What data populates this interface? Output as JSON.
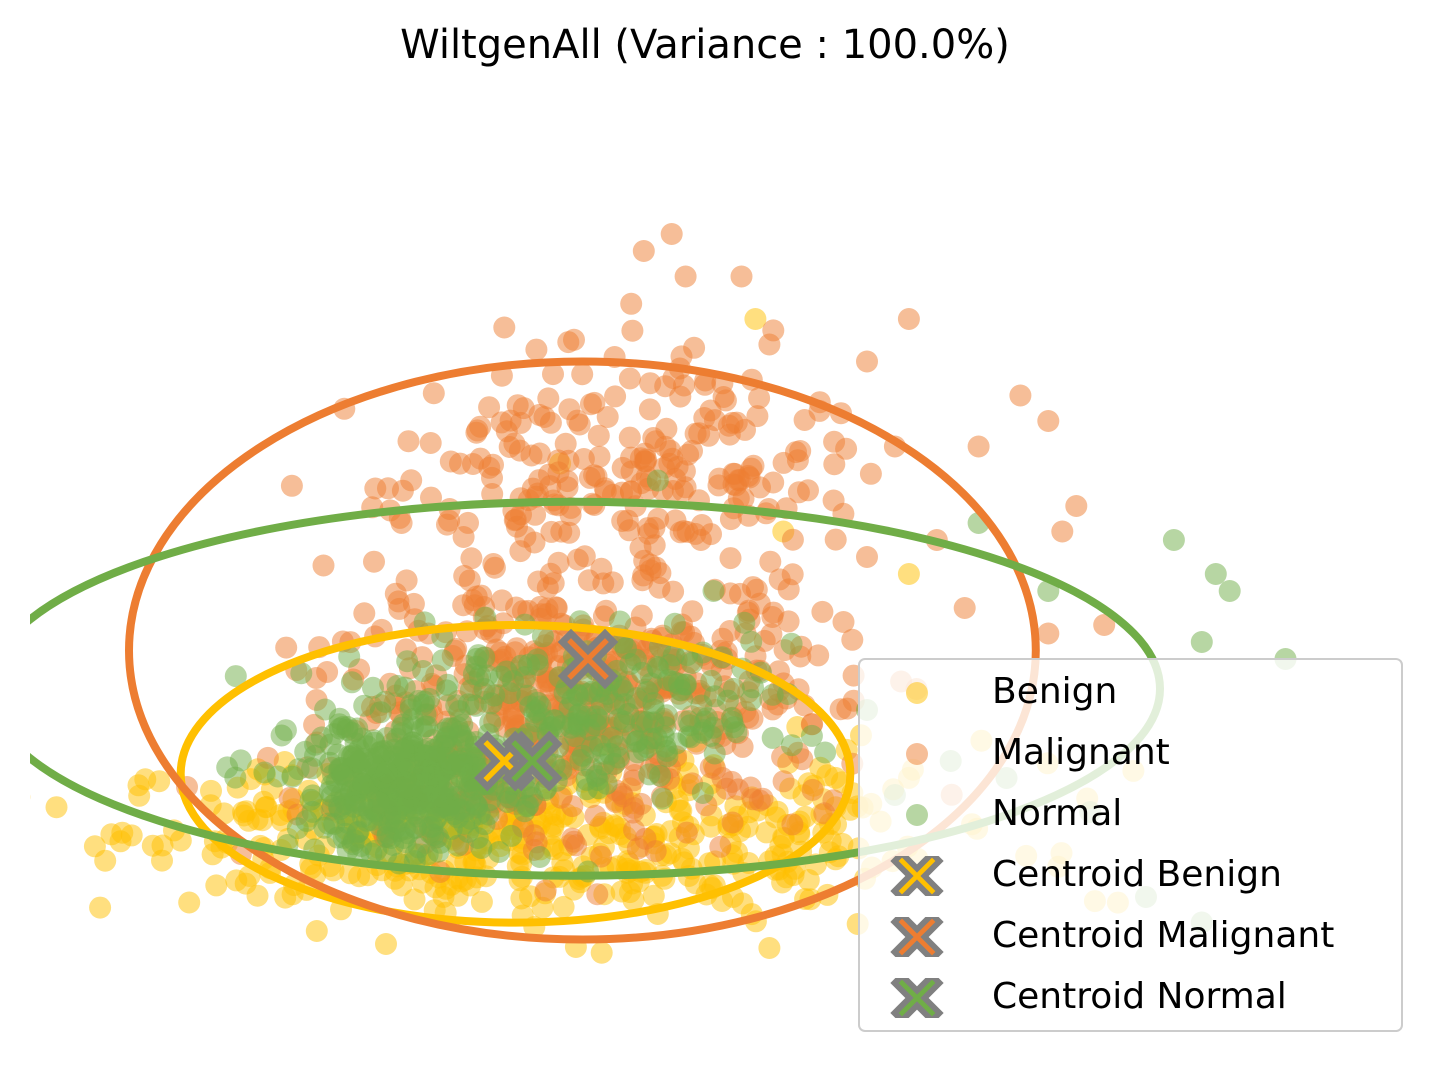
{
  "chart_data": {
    "type": "scatter",
    "title": "WiltgenAll (Variance : 100.0%)",
    "axes_visible": false,
    "grid": false,
    "legend_placement": "lower-right",
    "xlim": [
      0,
      100
    ],
    "ylim": [
      0,
      100
    ],
    "series": [
      {
        "name": "Benign",
        "color": "#FFC000",
        "marker": "circle",
        "alpha": 0.5,
        "clusters": [
          {
            "cx": 30,
            "cy": 24,
            "sx": 12,
            "sy": 4,
            "n": 260
          },
          {
            "cx": 40,
            "cy": 20,
            "sx": 14,
            "sy": 4,
            "n": 140
          },
          {
            "cx": 50,
            "cy": 26,
            "sx": 10,
            "sy": 5,
            "n": 70
          }
        ],
        "extra_points": [
          [
            63,
            54
          ],
          [
            54,
            59
          ],
          [
            38,
            67
          ],
          [
            52,
            84
          ],
          [
            45,
            14
          ],
          [
            53,
            10
          ],
          [
            55,
            36
          ]
        ]
      },
      {
        "name": "Malignant",
        "color": "#ED7D31",
        "marker": "circle",
        "alpha": 0.5,
        "clusters": [
          {
            "cx": 40,
            "cy": 40,
            "sx": 9,
            "sy": 7,
            "n": 520
          },
          {
            "cx": 35,
            "cy": 64,
            "sx": 6,
            "sy": 6,
            "n": 70
          },
          {
            "cx": 44,
            "cy": 70,
            "sx": 5,
            "sy": 6,
            "n": 90
          },
          {
            "cx": 50,
            "cy": 64,
            "sx": 5,
            "sy": 5,
            "n": 70
          },
          {
            "cx": 34,
            "cy": 27,
            "sx": 9,
            "sy": 3,
            "n": 60
          }
        ],
        "extra_points": [
          [
            46,
            94
          ],
          [
            44,
            92
          ],
          [
            51,
            89
          ],
          [
            47,
            89
          ],
          [
            53,
            81
          ],
          [
            60,
            79
          ],
          [
            63,
            84
          ],
          [
            73,
            72
          ],
          [
            71,
            75
          ],
          [
            68,
            69
          ],
          [
            75,
            62
          ],
          [
            65,
            58
          ],
          [
            77,
            48
          ],
          [
            73,
            47
          ],
          [
            74,
            59
          ],
          [
            60,
            56
          ],
          [
            67,
            50
          ],
          [
            62,
            69
          ],
          [
            34,
            83
          ],
          [
            43,
            77
          ]
        ]
      },
      {
        "name": "Normal",
        "color": "#70AD47",
        "marker": "circle",
        "alpha": 0.5,
        "clusters": [
          {
            "cx": 27,
            "cy": 29,
            "sx": 4,
            "sy": 4,
            "n": 360
          },
          {
            "cx": 36,
            "cy": 36,
            "sx": 7,
            "sy": 5,
            "n": 180
          },
          {
            "cx": 45,
            "cy": 39,
            "sx": 5,
            "sy": 4,
            "n": 80
          }
        ],
        "extra_points": [
          [
            45,
            65
          ],
          [
            49,
            52
          ],
          [
            60,
            38
          ],
          [
            68,
            60
          ],
          [
            73,
            52
          ],
          [
            82,
            58
          ],
          [
            85,
            54
          ],
          [
            86,
            52
          ],
          [
            90,
            44
          ],
          [
            84,
            46
          ],
          [
            66,
            32
          ],
          [
            70,
            30
          ],
          [
            76,
            26
          ],
          [
            80,
            16
          ],
          [
            84,
            13
          ],
          [
            62,
            28
          ],
          [
            57,
            33
          ],
          [
            40,
            19
          ]
        ]
      },
      {
        "name": "Centroid Benign",
        "color": "#FFC000",
        "marker": "x",
        "points": [
          [
            34,
            32
          ]
        ]
      },
      {
        "name": "Centroid Malignant",
        "color": "#ED7D31",
        "marker": "x",
        "points": [
          [
            40,
            44
          ]
        ]
      },
      {
        "name": "Centroid Normal",
        "color": "#70AD47",
        "marker": "x",
        "points": [
          [
            36,
            32
          ]
        ]
      }
    ],
    "ellipses": [
      {
        "series": "Benign",
        "cx": 34.8,
        "cy": 30.5,
        "rx": 24.0,
        "ry": 17.5,
        "color": "#FFC000"
      },
      {
        "series": "Malignant",
        "cx": 39.6,
        "cy": 45.0,
        "rx": 32.5,
        "ry": 34.0,
        "color": "#ED7D31"
      },
      {
        "series": "Normal",
        "cx": 39.0,
        "cy": 40.5,
        "rx": 42.0,
        "ry": 22.0,
        "color": "#70AD47"
      }
    ],
    "centroid_edge_color": "#808080"
  }
}
